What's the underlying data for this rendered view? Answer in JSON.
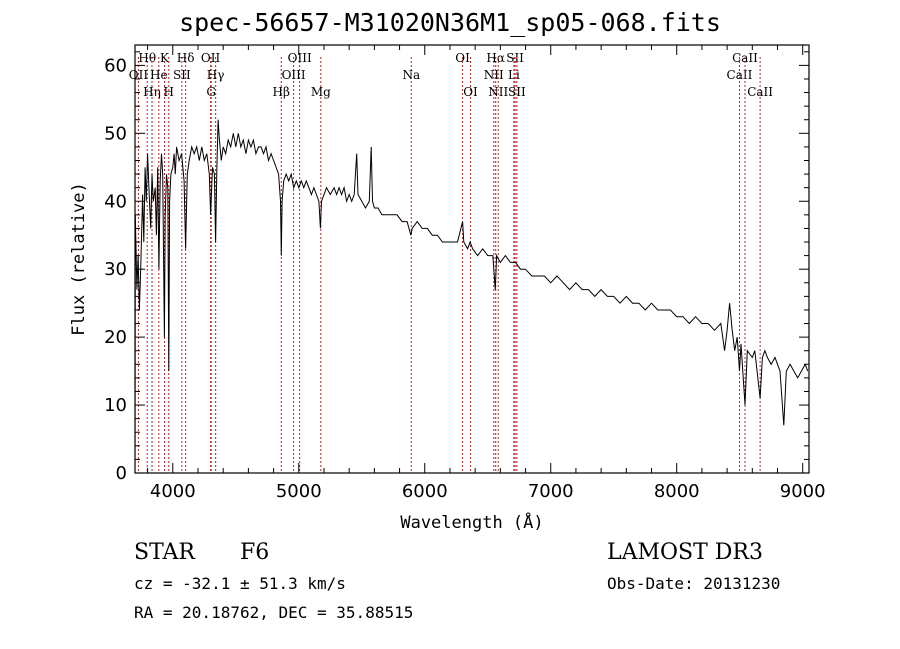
{
  "title": "spec-56657-M31020N36M1_sp05-068.fits",
  "info": {
    "object_class": "STAR",
    "subclass": "F6",
    "survey": "LAMOST DR3",
    "cz_text": "cz = -32.1 ± 51.3 km/s",
    "obs_date_text": "Obs-Date: 20131230",
    "coords_text": "RA =  20.18762, DEC =  35.88515"
  },
  "chart_data": {
    "type": "line",
    "title": "spec-56657-M31020N36M1_sp05-068.fits",
    "xlabel": "Wavelength (Å)",
    "ylabel": "Flux (relative)",
    "xlim": [
      3700,
      9050
    ],
    "ylim": [
      0,
      63
    ],
    "xticks": [
      4000,
      5000,
      6000,
      7000,
      8000,
      9000
    ],
    "yticks": [
      0,
      10,
      20,
      30,
      40,
      50,
      60
    ],
    "colors": {
      "spectrum": "#000000",
      "line_marker": "#b22222",
      "axes": "#000000"
    },
    "spectrum_points": [
      [
        3700,
        0
      ],
      [
        3702,
        38
      ],
      [
        3715,
        27
      ],
      [
        3725,
        32
      ],
      [
        3735,
        24
      ],
      [
        3745,
        30
      ],
      [
        3760,
        41
      ],
      [
        3770,
        34
      ],
      [
        3780,
        45
      ],
      [
        3790,
        40
      ],
      [
        3800,
        47
      ],
      [
        3810,
        42
      ],
      [
        3825,
        36
      ],
      [
        3835,
        44
      ],
      [
        3845,
        40
      ],
      [
        3860,
        42
      ],
      [
        3870,
        35
      ],
      [
        3880,
        45
      ],
      [
        3890,
        30
      ],
      [
        3900,
        43
      ],
      [
        3910,
        47
      ],
      [
        3920,
        44
      ],
      [
        3933,
        20
      ],
      [
        3940,
        38
      ],
      [
        3950,
        44
      ],
      [
        3960,
        42
      ],
      [
        3968,
        15
      ],
      [
        3975,
        40
      ],
      [
        3985,
        44
      ],
      [
        4000,
        45
      ],
      [
        4010,
        47
      ],
      [
        4020,
        44
      ],
      [
        4030,
        48
      ],
      [
        4050,
        46
      ],
      [
        4070,
        47
      ],
      [
        4090,
        43
      ],
      [
        4102,
        33
      ],
      [
        4115,
        44
      ],
      [
        4130,
        46
      ],
      [
        4150,
        48
      ],
      [
        4170,
        47
      ],
      [
        4190,
        48
      ],
      [
        4210,
        46
      ],
      [
        4230,
        48
      ],
      [
        4250,
        46
      ],
      [
        4270,
        47
      ],
      [
        4290,
        44
      ],
      [
        4300,
        38
      ],
      [
        4315,
        45
      ],
      [
        4330,
        44
      ],
      [
        4340,
        34
      ],
      [
        4350,
        45
      ],
      [
        4360,
        52
      ],
      [
        4370,
        49
      ],
      [
        4385,
        46
      ],
      [
        4400,
        48
      ],
      [
        4420,
        47
      ],
      [
        4440,
        49
      ],
      [
        4460,
        48
      ],
      [
        4480,
        50
      ],
      [
        4500,
        48
      ],
      [
        4520,
        50
      ],
      [
        4540,
        48
      ],
      [
        4560,
        49
      ],
      [
        4580,
        47
      ],
      [
        4600,
        49
      ],
      [
        4620,
        48
      ],
      [
        4640,
        49
      ],
      [
        4660,
        47
      ],
      [
        4680,
        48
      ],
      [
        4700,
        48
      ],
      [
        4720,
        47
      ],
      [
        4740,
        48
      ],
      [
        4760,
        46
      ],
      [
        4780,
        47
      ],
      [
        4800,
        46
      ],
      [
        4820,
        45
      ],
      [
        4840,
        44
      ],
      [
        4855,
        40
      ],
      [
        4861,
        32
      ],
      [
        4868,
        40
      ],
      [
        4880,
        43
      ],
      [
        4900,
        44
      ],
      [
        4920,
        43
      ],
      [
        4940,
        44
      ],
      [
        4960,
        42
      ],
      [
        4980,
        43
      ],
      [
        5000,
        42
      ],
      [
        5020,
        43
      ],
      [
        5040,
        42
      ],
      [
        5060,
        43
      ],
      [
        5080,
        42
      ],
      [
        5100,
        41
      ],
      [
        5120,
        42
      ],
      [
        5140,
        41
      ],
      [
        5160,
        40
      ],
      [
        5172,
        36
      ],
      [
        5180,
        40
      ],
      [
        5200,
        41
      ],
      [
        5220,
        42
      ],
      [
        5250,
        41
      ],
      [
        5280,
        42
      ],
      [
        5300,
        41
      ],
      [
        5320,
        42
      ],
      [
        5340,
        41
      ],
      [
        5360,
        42
      ],
      [
        5380,
        40
      ],
      [
        5400,
        41
      ],
      [
        5420,
        40
      ],
      [
        5440,
        41
      ],
      [
        5460,
        47
      ],
      [
        5470,
        41
      ],
      [
        5500,
        40
      ],
      [
        5530,
        39
      ],
      [
        5560,
        40
      ],
      [
        5575,
        48
      ],
      [
        5585,
        40
      ],
      [
        5600,
        39
      ],
      [
        5630,
        39
      ],
      [
        5660,
        38
      ],
      [
        5700,
        38
      ],
      [
        5740,
        38
      ],
      [
        5780,
        38
      ],
      [
        5820,
        37
      ],
      [
        5860,
        37
      ],
      [
        5890,
        35
      ],
      [
        5900,
        36
      ],
      [
        5940,
        37
      ],
      [
        5980,
        36
      ],
      [
        6020,
        36
      ],
      [
        6060,
        35
      ],
      [
        6100,
        35
      ],
      [
        6140,
        34
      ],
      [
        6180,
        34
      ],
      [
        6220,
        34
      ],
      [
        6260,
        34
      ],
      [
        6300,
        37
      ],
      [
        6310,
        34
      ],
      [
        6340,
        33
      ],
      [
        6360,
        34
      ],
      [
        6380,
        33
      ],
      [
        6420,
        32
      ],
      [
        6460,
        33
      ],
      [
        6500,
        32
      ],
      [
        6540,
        32
      ],
      [
        6560,
        27
      ],
      [
        6570,
        32
      ],
      [
        6600,
        31
      ],
      [
        6640,
        32
      ],
      [
        6680,
        31
      ],
      [
        6720,
        31
      ],
      [
        6760,
        30
      ],
      [
        6800,
        30
      ],
      [
        6850,
        29
      ],
      [
        6900,
        29
      ],
      [
        6950,
        29
      ],
      [
        7000,
        28
      ],
      [
        7050,
        29
      ],
      [
        7100,
        28
      ],
      [
        7150,
        27
      ],
      [
        7200,
        28
      ],
      [
        7250,
        27
      ],
      [
        7300,
        27
      ],
      [
        7350,
        26
      ],
      [
        7400,
        27
      ],
      [
        7450,
        26
      ],
      [
        7500,
        26
      ],
      [
        7550,
        25
      ],
      [
        7600,
        26
      ],
      [
        7650,
        25
      ],
      [
        7700,
        25
      ],
      [
        7750,
        24
      ],
      [
        7800,
        25
      ],
      [
        7850,
        24
      ],
      [
        7900,
        24
      ],
      [
        7950,
        24
      ],
      [
        8000,
        23
      ],
      [
        8050,
        23
      ],
      [
        8100,
        22
      ],
      [
        8150,
        23
      ],
      [
        8200,
        22
      ],
      [
        8250,
        22
      ],
      [
        8300,
        21
      ],
      [
        8350,
        22
      ],
      [
        8380,
        18
      ],
      [
        8400,
        21
      ],
      [
        8420,
        25
      ],
      [
        8440,
        21
      ],
      [
        8460,
        18
      ],
      [
        8480,
        20
      ],
      [
        8498,
        15
      ],
      [
        8510,
        19
      ],
      [
        8542,
        10
      ],
      [
        8560,
        18
      ],
      [
        8600,
        17
      ],
      [
        8620,
        18
      ],
      [
        8662,
        11
      ],
      [
        8680,
        17
      ],
      [
        8700,
        18
      ],
      [
        8720,
        17
      ],
      [
        8750,
        16
      ],
      [
        8780,
        17
      ],
      [
        8800,
        16
      ],
      [
        8820,
        15
      ],
      [
        8850,
        7
      ],
      [
        8870,
        15
      ],
      [
        8900,
        16
      ],
      [
        8930,
        15
      ],
      [
        8960,
        14
      ],
      [
        8990,
        15
      ],
      [
        9020,
        16
      ],
      [
        9040,
        15
      ]
    ],
    "spectral_lines": [
      {
        "label": "Hθ",
        "wave": 3797,
        "row": 1
      },
      {
        "label": "OII",
        "wave": 3727,
        "row": 2
      },
      {
        "label": "Hη",
        "wave": 3835,
        "row": 3
      },
      {
        "label": "He",
        "wave": 3889,
        "row": 2
      },
      {
        "label": "K",
        "wave": 3934,
        "row": 1
      },
      {
        "label": "H",
        "wave": 3968,
        "row": 3
      },
      {
        "label": "SII",
        "wave": 4072,
        "row": 2
      },
      {
        "label": "Hδ",
        "wave": 4102,
        "row": 1
      },
      {
        "label": "OII",
        "wave": 4300,
        "row": 1
      },
      {
        "label": "G",
        "wave": 4305,
        "row": 3
      },
      {
        "label": "Hγ",
        "wave": 4340,
        "row": 2
      },
      {
        "label": "Hβ",
        "wave": 4861,
        "row": 3
      },
      {
        "label": "OIII",
        "wave": 4959,
        "row": 2
      },
      {
        "label": "OIII",
        "wave": 5007,
        "row": 1
      },
      {
        "label": "Mg",
        "wave": 5175,
        "row": 3
      },
      {
        "label": "Na",
        "wave": 5893,
        "row": 2
      },
      {
        "label": "OI",
        "wave": 6300,
        "row": 1
      },
      {
        "label": "OI",
        "wave": 6363,
        "row": 3
      },
      {
        "label": "NII",
        "wave": 6548,
        "row": 2
      },
      {
        "label": "Hα",
        "wave": 6563,
        "row": 1
      },
      {
        "label": "NII",
        "wave": 6583,
        "row": 3
      },
      {
        "label": "Li",
        "wave": 6708,
        "row": 2
      },
      {
        "label": "SII",
        "wave": 6717,
        "row": 1
      },
      {
        "label": "SII",
        "wave": 6731,
        "row": 3
      },
      {
        "label": "CaII",
        "wave": 8498,
        "row": 2
      },
      {
        "label": "CaII",
        "wave": 8542,
        "row": 1
      },
      {
        "label": "CaII",
        "wave": 8662,
        "row": 3
      }
    ]
  }
}
